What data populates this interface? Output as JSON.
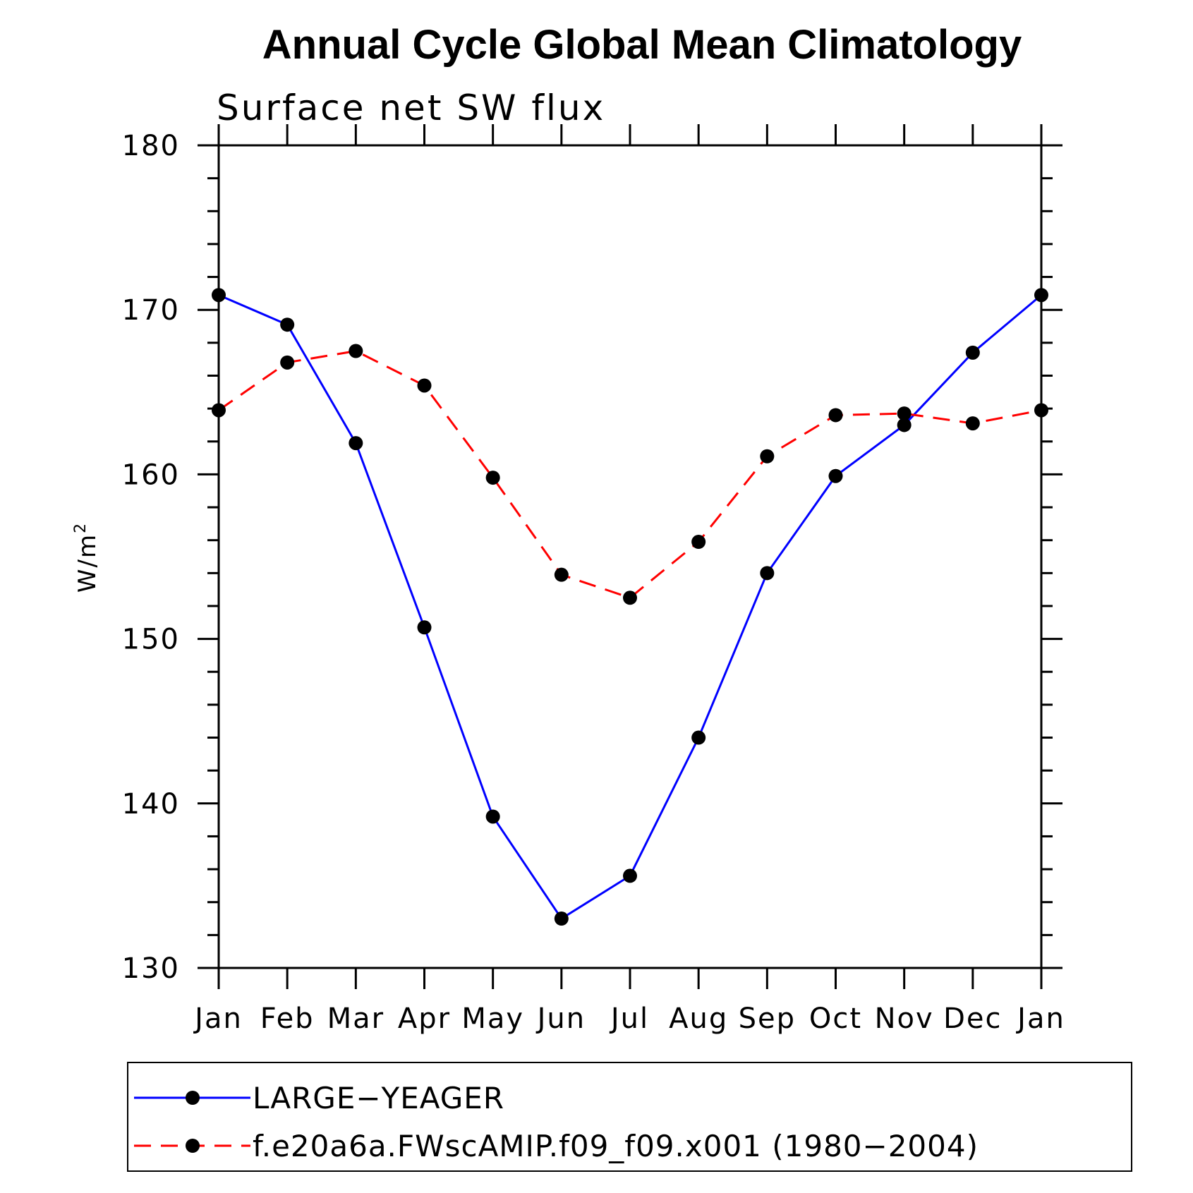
{
  "chart_data": {
    "type": "line",
    "title": "Annual Cycle Global Mean Climatology",
    "subtitle": "Surface net SW flux",
    "xlabel": "",
    "ylabel": "W/m",
    "ylabel_superscript": "2",
    "categories": [
      "Jan",
      "Feb",
      "Mar",
      "Apr",
      "May",
      "Jun",
      "Jul",
      "Aug",
      "Sep",
      "Oct",
      "Nov",
      "Dec",
      "Jan"
    ],
    "ylim": [
      130,
      180
    ],
    "yticks": [
      130,
      140,
      150,
      160,
      170,
      180
    ],
    "yminor_step": 2,
    "grid": false,
    "legend_position": "bottom",
    "series": [
      {
        "name": "LARGE−YEAGER",
        "color": "#0000ff",
        "dash": "solid",
        "marker": "filled-circle",
        "values": [
          170.9,
          169.1,
          161.9,
          150.7,
          139.2,
          133.0,
          135.6,
          144.0,
          154.0,
          159.9,
          163.0,
          167.4,
          170.9
        ]
      },
      {
        "name": "f.e20a6a.FWscAMIP.f09_f09.x001 (1980−2004)",
        "color": "#ff0000",
        "dash": "dashed",
        "marker": "filled-circle",
        "values": [
          163.9,
          166.8,
          167.5,
          165.4,
          159.8,
          153.9,
          152.5,
          155.9,
          161.1,
          163.6,
          163.7,
          163.1,
          163.9
        ]
      }
    ]
  }
}
